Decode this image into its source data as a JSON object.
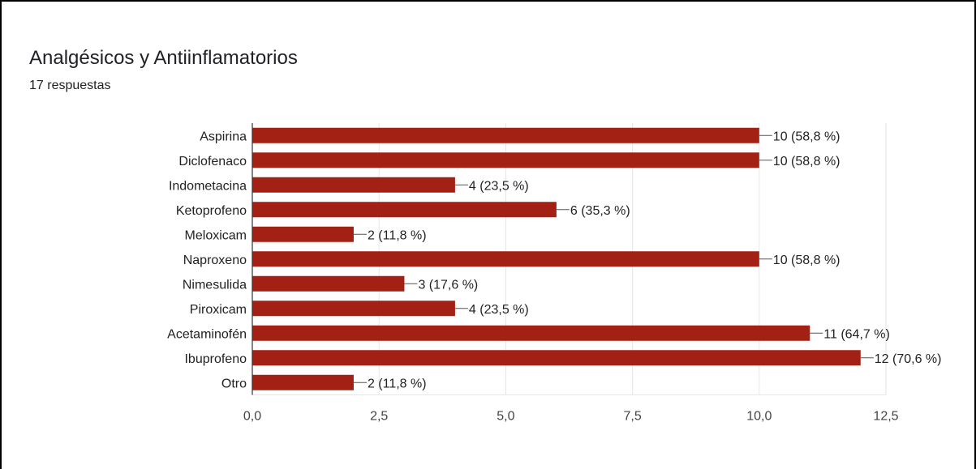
{
  "chart_data": {
    "type": "bar",
    "orientation": "horizontal",
    "title": "Analgésicos y Antiinflamatorios",
    "subtitle": "17 respuestas",
    "categories": [
      "Aspirina",
      "Diclofenaco",
      "Indometacina",
      "Ketoprofeno",
      "Meloxicam",
      "Naproxeno",
      "Nimesulida",
      "Piroxicam",
      "Acetaminofén",
      "Ibuprofeno",
      "Otro"
    ],
    "values": [
      10,
      10,
      4,
      6,
      2,
      10,
      3,
      4,
      11,
      12,
      2
    ],
    "data_labels": [
      "10 (58,8 %)",
      "10 (58,8 %)",
      "4 (23,5 %)",
      "6 (35,3 %)",
      "2 (11,8 %)",
      "10 (58,8 %)",
      "3 (17,6 %)",
      "4 (23,5 %)",
      "11 (64,7 %)",
      "12 (70,6 %)",
      "2 (11,8 %)"
    ],
    "xlim": [
      0,
      12.5
    ],
    "xticks": [
      0,
      2.5,
      5,
      7.5,
      10,
      12.5
    ],
    "xtick_labels": [
      "0,0",
      "2,5",
      "5,0",
      "7,5",
      "10,0",
      "12,5"
    ],
    "xlabel": "",
    "ylabel": "",
    "grid": true,
    "legend": "none",
    "bar_color": "#a32015"
  }
}
